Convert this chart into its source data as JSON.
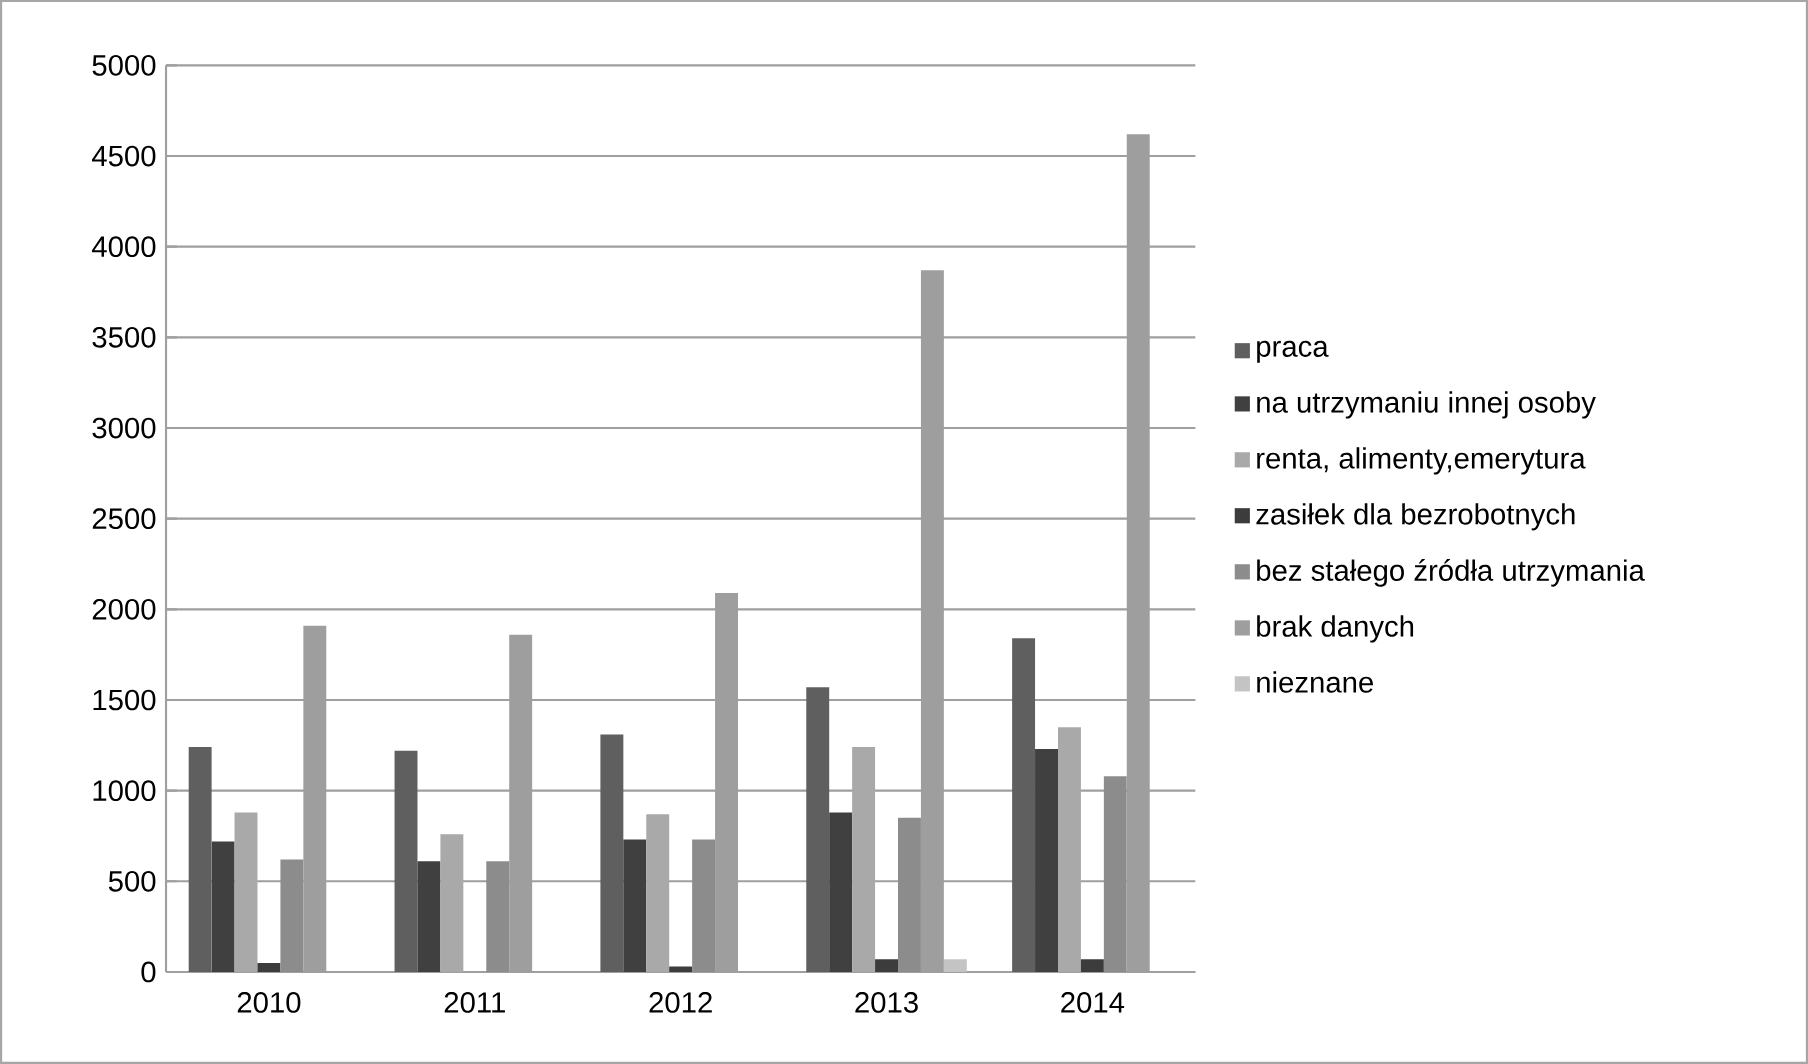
{
  "chart_data": {
    "type": "bar",
    "categories": [
      "2010",
      "2011",
      "2012",
      "2013",
      "2014"
    ],
    "series": [
      {
        "name": "praca",
        "color": "#5f5f5f",
        "values": [
          1240,
          1220,
          1310,
          1570,
          1840
        ]
      },
      {
        "name": "na utrzymaniu innej osoby",
        "color": "#404040",
        "values": [
          720,
          610,
          730,
          880,
          1230
        ]
      },
      {
        "name": "renta, alimenty,emerytura",
        "color": "#a9a9a9",
        "values": [
          880,
          760,
          870,
          1240,
          1350
        ]
      },
      {
        "name": "zasiłek dla bezrobotnych",
        "color": "#3c3c3c",
        "values": [
          50,
          0,
          30,
          70,
          70
        ]
      },
      {
        "name": "bez stałego źródła utrzymania",
        "color": "#8c8c8c",
        "values": [
          620,
          610,
          730,
          850,
          1080
        ]
      },
      {
        "name": "brak danych",
        "color": "#9e9e9e",
        "values": [
          1910,
          1860,
          2090,
          3870,
          4620
        ]
      },
      {
        "name": "nieznane",
        "color": "#c4c4c4",
        "values": [
          0,
          0,
          0,
          70,
          0
        ]
      }
    ],
    "ylim": [
      0,
      5000
    ],
    "yticks": [
      0,
      500,
      1000,
      1500,
      2000,
      2500,
      3000,
      3500,
      4000,
      4500,
      5000
    ],
    "grid": "y",
    "legend": "right"
  }
}
